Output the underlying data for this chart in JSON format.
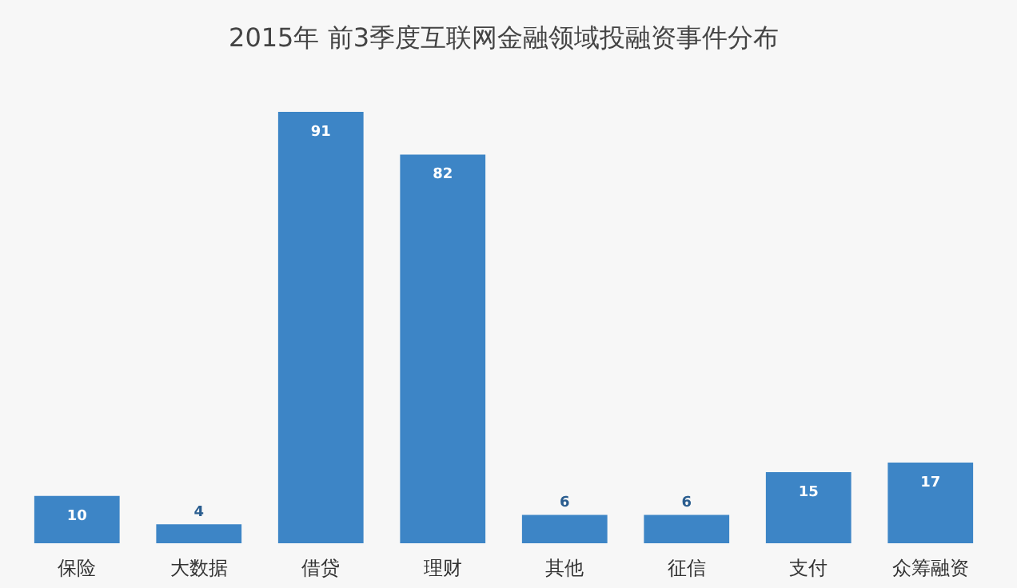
{
  "chart_data": {
    "type": "bar",
    "title": "2015年 前3季度互联网金融领域投融资事件分布",
    "categories": [
      "保险",
      "大数据",
      "借贷",
      "理财",
      "其他",
      "征信",
      "支付",
      "众筹融资"
    ],
    "values": [
      10,
      4,
      91,
      82,
      6,
      6,
      15,
      17
    ],
    "color": "#3d85c6",
    "data_labels": true
  }
}
